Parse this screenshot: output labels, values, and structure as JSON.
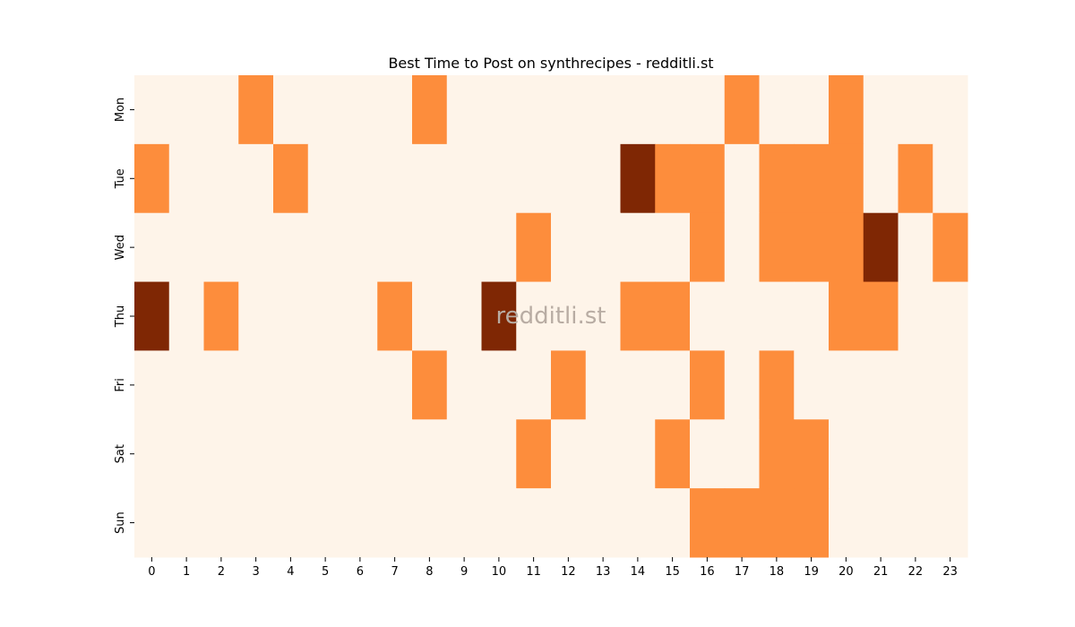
{
  "chart_data": {
    "type": "heatmap",
    "title": "Best Time to Post on synthrecipes - redditli.st",
    "watermark": "redditli.st",
    "xlabel": "",
    "ylabel": "",
    "x_categories": [
      "0",
      "1",
      "2",
      "3",
      "4",
      "5",
      "6",
      "7",
      "8",
      "9",
      "10",
      "11",
      "12",
      "13",
      "14",
      "15",
      "16",
      "17",
      "18",
      "19",
      "20",
      "21",
      "22",
      "23"
    ],
    "y_categories": [
      "Mon",
      "Tue",
      "Wed",
      "Thu",
      "Fri",
      "Sat",
      "Sun"
    ],
    "levels": [
      0,
      1,
      2
    ],
    "values": [
      [
        0,
        0,
        0,
        1,
        0,
        0,
        0,
        0,
        1,
        0,
        0,
        0,
        0,
        0,
        0,
        0,
        0,
        1,
        0,
        0,
        1,
        0,
        0,
        0
      ],
      [
        1,
        0,
        0,
        0,
        1,
        0,
        0,
        0,
        0,
        0,
        0,
        0,
        0,
        0,
        2,
        1,
        1,
        0,
        1,
        1,
        1,
        0,
        1,
        0
      ],
      [
        0,
        0,
        0,
        0,
        0,
        0,
        0,
        0,
        0,
        0,
        0,
        1,
        0,
        0,
        0,
        0,
        1,
        0,
        1,
        1,
        1,
        2,
        0,
        1
      ],
      [
        2,
        0,
        1,
        0,
        0,
        0,
        0,
        1,
        0,
        0,
        2,
        0,
        0,
        0,
        1,
        1,
        0,
        0,
        0,
        0,
        1,
        1,
        0,
        0
      ],
      [
        0,
        0,
        0,
        0,
        0,
        0,
        0,
        0,
        1,
        0,
        0,
        0,
        1,
        0,
        0,
        0,
        1,
        0,
        1,
        0,
        0,
        0,
        0,
        0
      ],
      [
        0,
        0,
        0,
        0,
        0,
        0,
        0,
        0,
        0,
        0,
        0,
        1,
        0,
        0,
        0,
        1,
        0,
        0,
        1,
        1,
        0,
        0,
        0,
        0
      ],
      [
        0,
        0,
        0,
        0,
        0,
        0,
        0,
        0,
        0,
        0,
        0,
        0,
        0,
        0,
        0,
        0,
        1,
        1,
        1,
        1,
        0,
        0,
        0,
        0
      ]
    ],
    "colors": [
      "#fef4e9",
      "#fd8d3c",
      "#7f2704"
    ],
    "colorbar": false,
    "grid": false
  }
}
